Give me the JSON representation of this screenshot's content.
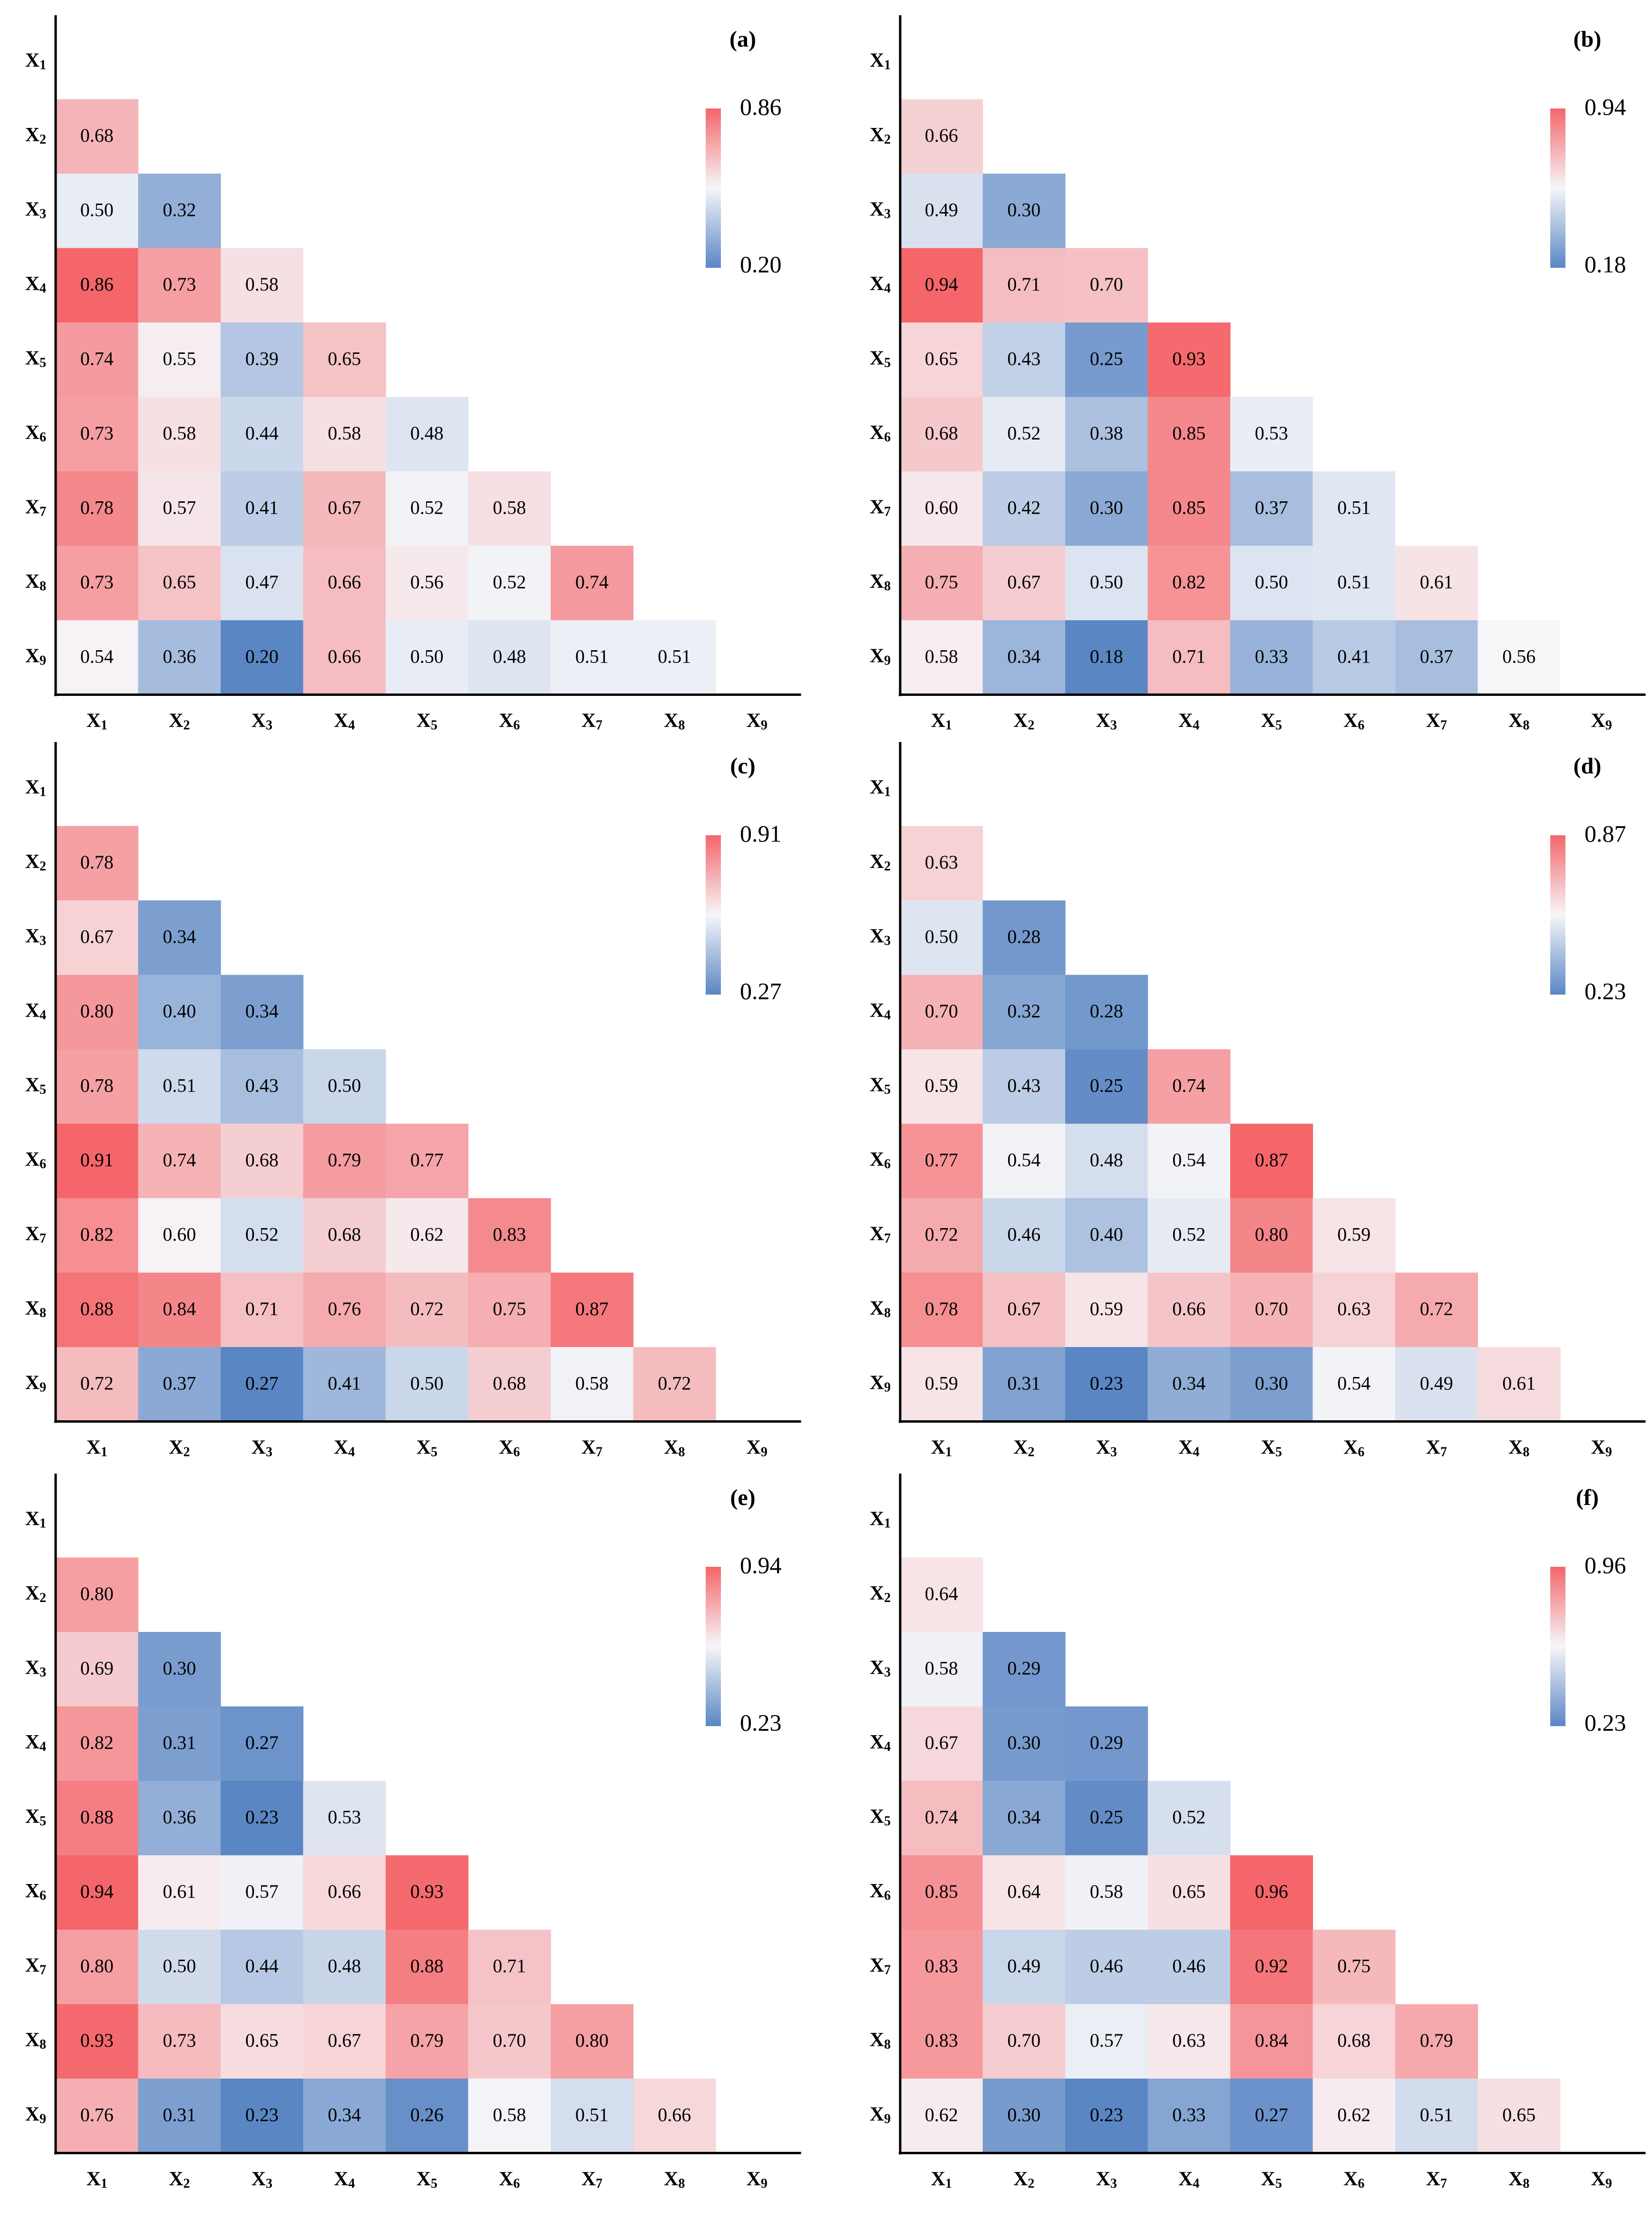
{
  "figure": {
    "variable_labels": [
      "X1",
      "X2",
      "X3",
      "X4",
      "X5",
      "X6",
      "X7",
      "X8",
      "X9"
    ],
    "colors": {
      "low": "#5a86c4",
      "mid": "#f6f6f9",
      "high": "#f4666a",
      "axis": "#000000",
      "text": "#000000"
    }
  },
  "chart_data": [
    {
      "type": "heatmap",
      "panel_label": "(a)",
      "colorbar": {
        "max_label": "0.86",
        "min_label": "0.20",
        "max": 0.86,
        "min": 0.2
      },
      "x_categories": [
        "X1",
        "X2",
        "X3",
        "X4",
        "X5",
        "X6",
        "X7",
        "X8",
        "X9"
      ],
      "y_categories": [
        "X1",
        "X2",
        "X3",
        "X4",
        "X5",
        "X6",
        "X7",
        "X8",
        "X9"
      ],
      "rows": [
        [],
        [
          "0.68"
        ],
        [
          "0.50",
          "0.32"
        ],
        [
          "0.86",
          "0.73",
          "0.58"
        ],
        [
          "0.74",
          "0.55",
          "0.39",
          "0.65"
        ],
        [
          "0.73",
          "0.58",
          "0.44",
          "0.58",
          "0.48"
        ],
        [
          "0.78",
          "0.57",
          "0.41",
          "0.67",
          "0.52",
          "0.58"
        ],
        [
          "0.73",
          "0.65",
          "0.47",
          "0.66",
          "0.56",
          "0.52",
          "0.74"
        ],
        [
          "0.54",
          "0.36",
          "0.20",
          "0.66",
          "0.50",
          "0.48",
          "0.51",
          "0.51"
        ]
      ]
    },
    {
      "type": "heatmap",
      "panel_label": "(b)",
      "colorbar": {
        "max_label": "0.94",
        "min_label": "0.18",
        "max": 0.94,
        "min": 0.18
      },
      "x_categories": [
        "X1",
        "X2",
        "X3",
        "X4",
        "X5",
        "X6",
        "X7",
        "X8",
        "X9"
      ],
      "y_categories": [
        "X1",
        "X2",
        "X3",
        "X4",
        "X5",
        "X6",
        "X7",
        "X8",
        "X9"
      ],
      "rows": [
        [],
        [
          "0.66"
        ],
        [
          "0.49",
          "0.30"
        ],
        [
          "0.94",
          "0.71",
          "0.70"
        ],
        [
          "0.65",
          "0.43",
          "0.25",
          "0.93"
        ],
        [
          "0.68",
          "0.52",
          "0.38",
          "0.85",
          "0.53"
        ],
        [
          "0.60",
          "0.42",
          "0.30",
          "0.85",
          "0.37",
          "0.51"
        ],
        [
          "0.75",
          "0.67",
          "0.50",
          "0.82",
          "0.50",
          "0.51",
          "0.61"
        ],
        [
          "0.58",
          "0.34",
          "0.18",
          "0.71",
          "0.33",
          "0.41",
          "0.37",
          "0.56"
        ]
      ]
    },
    {
      "type": "heatmap",
      "panel_label": "(c)",
      "colorbar": {
        "max_label": "0.91",
        "min_label": "0.27",
        "max": 0.91,
        "min": 0.27
      },
      "x_categories": [
        "X1",
        "X2",
        "X3",
        "X4",
        "X5",
        "X6",
        "X7",
        "X8",
        "X9"
      ],
      "y_categories": [
        "X1",
        "X2",
        "X3",
        "X4",
        "X5",
        "X6",
        "X7",
        "X8",
        "X9"
      ],
      "rows": [
        [],
        [
          "0.78"
        ],
        [
          "0.67",
          "0.34"
        ],
        [
          "0.80",
          "0.40",
          "0.34"
        ],
        [
          "0.78",
          "0.51",
          "0.43",
          "0.50"
        ],
        [
          "0.91",
          "0.74",
          "0.68",
          "0.79",
          "0.77"
        ],
        [
          "0.82",
          "0.60",
          "0.52",
          "0.68",
          "0.62",
          "0.83"
        ],
        [
          "0.88",
          "0.84",
          "0.71",
          "0.76",
          "0.72",
          "0.75",
          "0.87"
        ],
        [
          "0.72",
          "0.37",
          "0.27",
          "0.41",
          "0.50",
          "0.68",
          "0.58",
          "0.72"
        ]
      ]
    },
    {
      "type": "heatmap",
      "panel_label": "(d)",
      "colorbar": {
        "max_label": "0.87",
        "min_label": "0.23",
        "max": 0.87,
        "min": 0.23
      },
      "x_categories": [
        "X1",
        "X2",
        "X3",
        "X4",
        "X5",
        "X6",
        "X7",
        "X8",
        "X9"
      ],
      "y_categories": [
        "X1",
        "X2",
        "X3",
        "X4",
        "X5",
        "X6",
        "X7",
        "X8",
        "X9"
      ],
      "rows": [
        [],
        [
          "0.63"
        ],
        [
          "0.50",
          "0.28"
        ],
        [
          "0.70",
          "0.32",
          "0.28"
        ],
        [
          "0.59",
          "0.43",
          "0.25",
          "0.74"
        ],
        [
          "0.77",
          "0.54",
          "0.48",
          "0.54",
          "0.87"
        ],
        [
          "0.72",
          "0.46",
          "0.40",
          "0.52",
          "0.80",
          "0.59"
        ],
        [
          "0.78",
          "0.67",
          "0.59",
          "0.66",
          "0.70",
          "0.63",
          "0.72"
        ],
        [
          "0.59",
          "0.31",
          "0.23",
          "0.34",
          "0.30",
          "0.54",
          "0.49",
          "0.61"
        ]
      ]
    },
    {
      "type": "heatmap",
      "panel_label": "(e)",
      "colorbar": {
        "max_label": "0.94",
        "min_label": "0.23",
        "max": 0.94,
        "min": 0.23
      },
      "x_categories": [
        "X1",
        "X2",
        "X3",
        "X4",
        "X5",
        "X6",
        "X7",
        "X8",
        "X9"
      ],
      "y_categories": [
        "X1",
        "X2",
        "X3",
        "X4",
        "X5",
        "X6",
        "X7",
        "X8",
        "X9"
      ],
      "rows": [
        [],
        [
          "0.80"
        ],
        [
          "0.69",
          "0.30"
        ],
        [
          "0.82",
          "0.31",
          "0.27"
        ],
        [
          "0.88",
          "0.36",
          "0.23",
          "0.53"
        ],
        [
          "0.94",
          "0.61",
          "0.57",
          "0.66",
          "0.93"
        ],
        [
          "0.80",
          "0.50",
          "0.44",
          "0.48",
          "0.88",
          "0.71"
        ],
        [
          "0.93",
          "0.73",
          "0.65",
          "0.67",
          "0.79",
          "0.70",
          "0.80"
        ],
        [
          "0.76",
          "0.31",
          "0.23",
          "0.34",
          "0.26",
          "0.58",
          "0.51",
          "0.66"
        ]
      ]
    },
    {
      "type": "heatmap",
      "panel_label": "(f)",
      "colorbar": {
        "max_label": "0.96",
        "min_label": "0.23",
        "max": 0.96,
        "min": 0.23
      },
      "x_categories": [
        "X1",
        "X2",
        "X3",
        "X4",
        "X5",
        "X6",
        "X7",
        "X8",
        "X9"
      ],
      "y_categories": [
        "X1",
        "X2",
        "X3",
        "X4",
        "X5",
        "X6",
        "X7",
        "X8",
        "X9"
      ],
      "rows": [
        [],
        [
          "0.64"
        ],
        [
          "0.58",
          "0.29"
        ],
        [
          "0.67",
          "0.30",
          "0.29"
        ],
        [
          "0.74",
          "0.34",
          "0.25",
          "0.52"
        ],
        [
          "0.85",
          "0.64",
          "0.58",
          "0.65",
          "0.96"
        ],
        [
          "0.83",
          "0.49",
          "0.46",
          "0.46",
          "0.92",
          "0.75"
        ],
        [
          "0.83",
          "0.70",
          "0.57",
          "0.63",
          "0.84",
          "0.68",
          "0.79"
        ],
        [
          "0.62",
          "0.30",
          "0.23",
          "0.33",
          "0.27",
          "0.62",
          "0.51",
          "0.65"
        ]
      ]
    }
  ]
}
